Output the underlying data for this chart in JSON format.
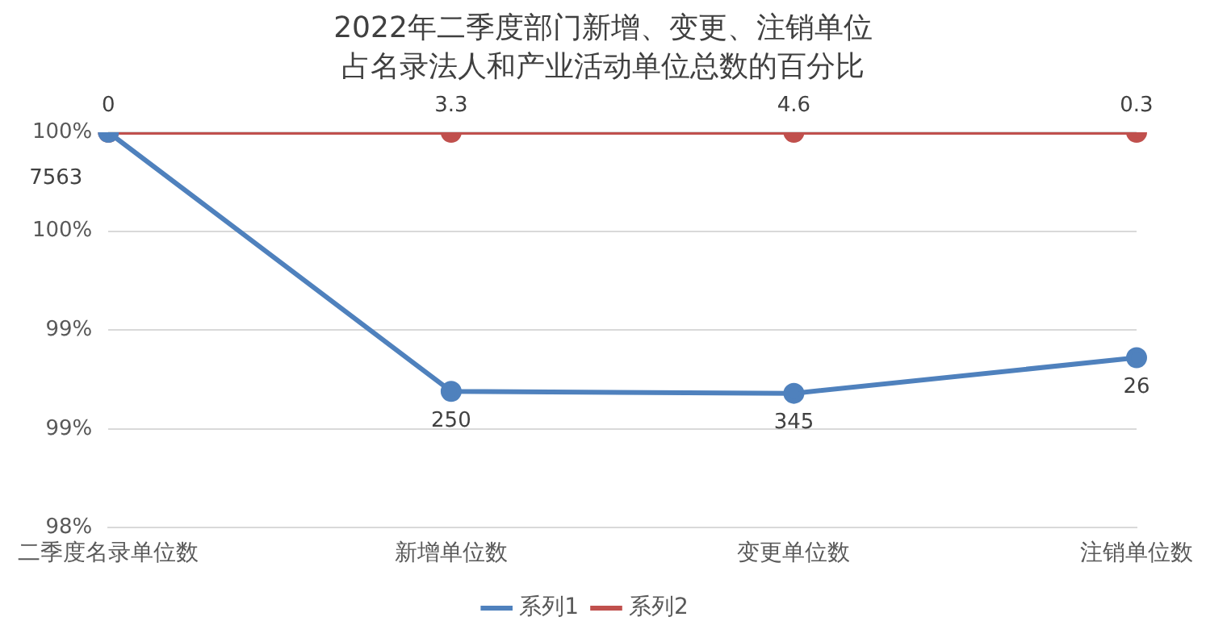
{
  "chart_data": {
    "type": "line",
    "title": "2022年二季度部门新增、变更、注销单位占名录法人和产业活动单位总数的百分比",
    "categories": [
      "二季度名录单位数",
      "新增单位数",
      "变更单位数",
      "注销单位数"
    ],
    "series": [
      {
        "name": "系列1",
        "color": "#4f81bd",
        "values": [
          100,
          98.69,
          98.68,
          98.86
        ]
      },
      {
        "name": "系列2",
        "color": "#c0504d",
        "values": [
          100,
          100,
          100,
          100
        ]
      }
    ],
    "annotations": [
      {
        "text": "7563",
        "x": "二季度名录单位数",
        "y": 100
      },
      {
        "text": "250",
        "x": "新增单位数",
        "y": 98.69
      },
      {
        "text": "345",
        "x": "变更单位数",
        "y": 98.68
      },
      {
        "text": "26",
        "x": "注销单位数",
        "y": 98.86
      },
      {
        "text": "0",
        "x": "二季度名录单位数",
        "y": 100
      },
      {
        "text": "3.3",
        "x": "新增单位数",
        "y": 100
      },
      {
        "text": "4.6",
        "x": "变更单位数",
        "y": 100
      },
      {
        "text": "0.3",
        "x": "注销单位数",
        "y": 100
      }
    ],
    "ylim": [
      98,
      100
    ],
    "yticks": [
      {
        "value": 98,
        "label": "98%"
      },
      {
        "value": 98.5,
        "label": "99%"
      },
      {
        "value": 99,
        "label": "99%"
      },
      {
        "value": 99.5,
        "label": "100%"
      },
      {
        "value": 100,
        "label": "100%"
      }
    ],
    "grid": "y",
    "legend": "bottom",
    "marker": "circle",
    "line_style": "solid"
  }
}
